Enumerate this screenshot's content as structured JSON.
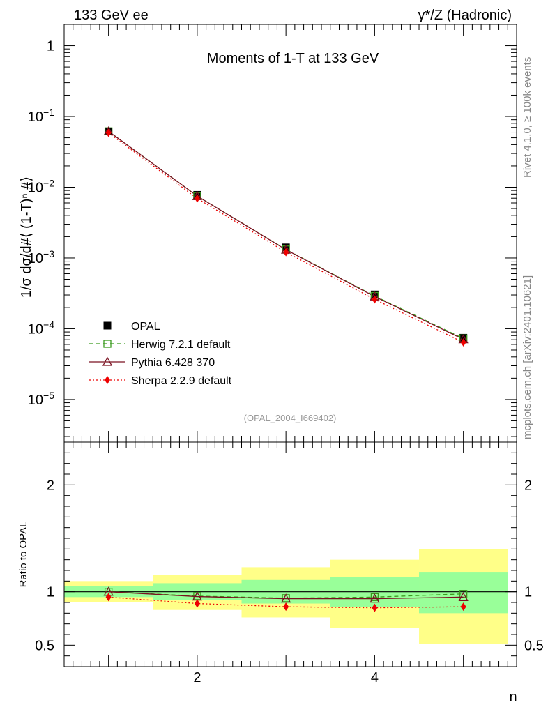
{
  "header": {
    "left_label": "133 GeV ee",
    "right_label": "γ*/Z (Hadronic)"
  },
  "side_labels": {
    "top": "Rivet 4.1.0, ≥ 100k events",
    "bottom": "mcplots.cern.ch [arXiv:2401.10621]"
  },
  "chart_data": [
    {
      "type": "line",
      "name": "main",
      "title": "Moments of 1-T at 133 GeV",
      "watermark": "(OPAL_2004_I669402)",
      "ylabel": "1/σ  dσ/d#⟨ (1-T)ⁿ #⟩",
      "yscale": "log",
      "xlim": [
        0.5,
        5.6
      ],
      "ylim": [
        2.5e-06,
        2
      ],
      "ytick_values": [
        1,
        0.1,
        0.01,
        0.001,
        0.0001,
        1e-05
      ],
      "ytick_labels": [
        {
          "base": "1",
          "exp": ""
        },
        {
          "base": "10",
          "exp": "−1"
        },
        {
          "base": "10",
          "exp": "−2"
        },
        {
          "base": "10",
          "exp": "−3"
        },
        {
          "base": "10",
          "exp": "−4"
        },
        {
          "base": "10",
          "exp": "−5"
        }
      ],
      "legend_position": "bottom-left",
      "x": [
        1,
        2,
        3,
        4,
        5
      ],
      "series": [
        {
          "name": "OPAL",
          "values": [
            0.0617,
            0.0078,
            0.00141,
            0.000305,
            7.45e-05
          ],
          "color": "#000000",
          "marker": "square-filled",
          "line": "none"
        },
        {
          "name": "Herwig 7.2.1 default",
          "values": [
            0.0617,
            0.0075,
            0.00132,
            0.00029,
            7.29e-05
          ],
          "color": "#3a9a1e",
          "marker": "square-open",
          "line": "dashed"
        },
        {
          "name": "Pythia 6.428 370",
          "values": [
            0.0617,
            0.0075,
            0.00131,
            0.000285,
            7.08e-05
          ],
          "color": "#7a1020",
          "marker": "triangle-open",
          "line": "solid"
        },
        {
          "name": "Sherpa 2.2.9 default",
          "values": [
            0.0587,
            0.00695,
            0.00121,
            0.00026,
            6.41e-05
          ],
          "color": "#ee0000",
          "marker": "diamond-filled",
          "line": "dotted"
        }
      ]
    },
    {
      "type": "line",
      "name": "ratio",
      "ylabel": "Ratio to OPAL",
      "xlabel": "n",
      "xlim": [
        0.5,
        5.6
      ],
      "ylim": [
        0.3,
        2.4
      ],
      "ytick_labels": [
        "0.5",
        "1",
        "2"
      ],
      "ytick_values": [
        0.5,
        1,
        2
      ],
      "xtick_labels": [
        "2",
        "4"
      ],
      "xtick_values": [
        2,
        4
      ],
      "bin_edges": [
        0.5,
        1.5,
        2.5,
        3.5,
        4.5,
        5.5
      ],
      "bands": {
        "stat_green": {
          "low": [
            0.95,
            0.92,
            0.89,
            0.86,
            0.8
          ],
          "high": [
            1.05,
            1.08,
            1.11,
            1.14,
            1.18
          ]
        },
        "total_yellow": {
          "low": [
            0.9,
            0.83,
            0.76,
            0.66,
            0.51
          ],
          "high": [
            1.1,
            1.16,
            1.23,
            1.3,
            1.4
          ]
        }
      },
      "reference": 1,
      "x": [
        1,
        2,
        3,
        4,
        5
      ],
      "series": [
        {
          "name": "Herwig 7.2.1 default",
          "values": [
            1.0,
            0.96,
            0.94,
            0.95,
            0.98
          ],
          "color": "#3a9a1e",
          "marker": "square-open",
          "line": "dashed"
        },
        {
          "name": "Pythia 6.428 370",
          "values": [
            1.0,
            0.955,
            0.935,
            0.935,
            0.95
          ],
          "color": "#7a1020",
          "marker": "triangle-open",
          "line": "solid"
        },
        {
          "name": "Sherpa 2.2.9 default",
          "values": [
            0.95,
            0.89,
            0.86,
            0.85,
            0.86
          ],
          "color": "#ee0000",
          "marker": "diamond-filled",
          "line": "dotted"
        }
      ]
    }
  ]
}
